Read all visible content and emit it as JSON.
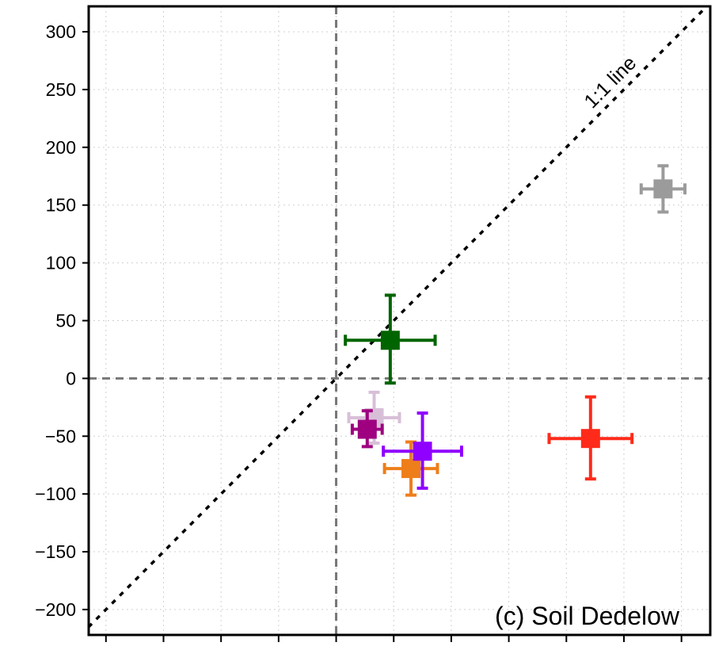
{
  "chart_data": {
    "type": "scatter",
    "title": "",
    "xlabel": "",
    "ylabel": "",
    "xlim": [
      -215,
      325
    ],
    "ylim": [
      -222,
      322
    ],
    "x_ticks": [
      -200,
      -150,
      -100,
      -50,
      0,
      50,
      100,
      150,
      200,
      250,
      300
    ],
    "y_ticks": [
      -200,
      -150,
      -100,
      -50,
      0,
      50,
      100,
      150,
      200,
      250,
      300
    ],
    "y_tick_labels": [
      "−200",
      "−150",
      "−100",
      "−50",
      "0",
      "50",
      "100",
      "150",
      "200",
      "250",
      "300"
    ],
    "x_tick_labels_visible": false,
    "grid": true,
    "reference_lines": [
      {
        "kind": "vertical",
        "x": 0,
        "style": "dashed",
        "color": "#777777"
      },
      {
        "kind": "horizontal",
        "y": 0,
        "style": "dashed",
        "color": "#777777"
      },
      {
        "kind": "identity",
        "style": "dotted",
        "color": "#000000",
        "label": "1:1 line"
      }
    ],
    "annotation": "(c) Soil Dedelow",
    "points": [
      {
        "color": "#006400",
        "x": 47,
        "x_err": 39,
        "y": 33,
        "y_err_low": 37,
        "y_err_high": 39
      },
      {
        "color": "#d8bfd8",
        "x": 33,
        "x_err": 22,
        "y": -34,
        "y_err_low": 22,
        "y_err_high": 22
      },
      {
        "color": "#9e0080",
        "x": 27,
        "x_err": 13,
        "y": -44,
        "y_err_low": 15,
        "y_err_high": 16
      },
      {
        "color": "#ee7e1a",
        "x": 65,
        "x_err": 23,
        "y": -78,
        "y_err_low": 23,
        "y_err_high": 23
      },
      {
        "color": "#8f00ff",
        "x": 75,
        "x_err": 34,
        "y": -63,
        "y_err_low": 32,
        "y_err_high": 33
      },
      {
        "color": "#ff2a1a",
        "x": 221,
        "x_err": 36,
        "y": -52,
        "y_err_low": 35,
        "y_err_high": 36
      },
      {
        "color": "#9b9b9b",
        "x": 284,
        "x_err": 19,
        "y": 164,
        "y_err_low": 20,
        "y_err_high": 20
      }
    ]
  }
}
